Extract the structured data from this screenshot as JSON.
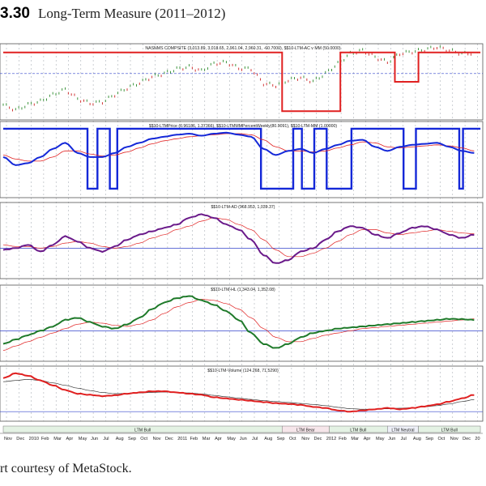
{
  "figure": {
    "number": "3.30",
    "title": "Long-Term Measure (2011–2012)",
    "caption": "rt courtesy of MetaStock."
  },
  "chart_data": {
    "type": "line",
    "colors": {
      "price_up": "#2a8a2a",
      "price_down": "#cc2222",
      "red": "#e02020",
      "blue": "#1428d8",
      "purple": "#6a1a8a",
      "green": "#1f7a2a",
      "thin": "#333333",
      "ref": "#3344cc",
      "grid": "#9aa0a8"
    },
    "x_axis": {
      "months": [
        "Nov",
        "Dec",
        "2010",
        "Feb",
        "Mar",
        "Apr",
        "May",
        "Jun",
        "Jul",
        "Aug",
        "Sep",
        "Oct",
        "Nov",
        "Dec",
        "2011",
        "Feb",
        "Mar",
        "Apr",
        "May",
        "Jun",
        "Jul",
        "Aug",
        "Sep",
        "Oct",
        "Nov",
        "Dec",
        "2012",
        "Feb",
        "Mar",
        "Apr",
        "May",
        "Jun",
        "Jul",
        "Aug",
        "Sep",
        "Oct",
        "Nov",
        "Dec",
        "20"
      ],
      "bands": [
        {
          "label": "LTM Bull",
          "from": 0,
          "to": 22.5,
          "style": "bull"
        },
        {
          "label": "LTM Bear",
          "from": 22.5,
          "to": 26.3,
          "style": "bear"
        },
        {
          "label": "LTM Bull",
          "from": 26.3,
          "to": 31.0,
          "style": "bull"
        },
        {
          "label": "LTM Neutral",
          "from": 31.0,
          "to": 33.5,
          "style": "neutral"
        },
        {
          "label": "LTM Bull",
          "from": 33.5,
          "to": 38.5,
          "style": "bull"
        }
      ]
    },
    "panels": [
      {
        "title": "NASNMS COMPSITE (3,013.89, 3,018.65, 2,961.04, 2,960.31, -60.7000), $$10-LTM-AC v MM (50.0000)",
        "price": [
          2230,
          2150,
          2230,
          2280,
          2380,
          2460,
          2320,
          2250,
          2270,
          2380,
          2480,
          2560,
          2650,
          2700,
          2770,
          2800,
          2740,
          2850,
          2870,
          2780,
          2770,
          2550,
          2520,
          2600,
          2640,
          2580,
          2700,
          2850,
          3000,
          3050,
          2950,
          2870,
          3000,
          3030,
          3060,
          3100,
          3050,
          3000,
          3010
        ],
        "price_range": [
          2000,
          3150
        ],
        "ref_line": 2700,
        "signal": {
          "name": "$$10-LTM-AC v MM",
          "steps": [
            [
              0,
              100
            ],
            [
              22.5,
              100
            ],
            [
              22.5,
              0
            ],
            [
              27.2,
              0
            ],
            [
              27.2,
              100
            ],
            [
              31.6,
              100
            ],
            [
              31.6,
              50
            ],
            [
              33.5,
              50
            ],
            [
              33.5,
              100
            ],
            [
              38.5,
              100
            ]
          ],
          "range": [
            0,
            100
          ]
        }
      },
      {
        "title": "$$10-LTMPrice (0.96186, 1.37366), $$10-LTMMMPercentWeekly(80.9091), $$10-LTM-MM (1.00000)",
        "series": [
          {
            "name": "LTMPrice",
            "color": "thick-blue",
            "values": [
              1.1,
              1.02,
              1.04,
              1.1,
              1.18,
              1.24,
              1.14,
              1.1,
              1.1,
              1.14,
              1.2,
              1.24,
              1.28,
              1.3,
              1.32,
              1.33,
              1.31,
              1.33,
              1.34,
              1.32,
              1.3,
              1.18,
              1.12,
              1.16,
              1.18,
              1.14,
              1.18,
              1.22,
              1.26,
              1.27,
              1.2,
              1.16,
              1.2,
              1.22,
              1.23,
              1.24,
              1.2,
              1.16,
              1.14
            ]
          },
          {
            "name": "LTMPrice avg",
            "color": "thin-red",
            "values": [
              1.12,
              1.08,
              1.06,
              1.06,
              1.1,
              1.16,
              1.16,
              1.13,
              1.11,
              1.12,
              1.15,
              1.19,
              1.23,
              1.26,
              1.28,
              1.3,
              1.31,
              1.32,
              1.33,
              1.33,
              1.32,
              1.27,
              1.2,
              1.16,
              1.16,
              1.15,
              1.16,
              1.19,
              1.22,
              1.25,
              1.24,
              1.2,
              1.19,
              1.2,
              1.21,
              1.22,
              1.21,
              1.19,
              1.16
            ]
          }
        ],
        "range": [
          0.7,
          1.45
        ],
        "signal": {
          "name": "$$10-LTM-MM",
          "steps": [
            [
              0,
              100
            ],
            [
              6.8,
              100
            ],
            [
              6.8,
              0
            ],
            [
              7.6,
              0
            ],
            [
              7.6,
              100
            ],
            [
              8.6,
              100
            ],
            [
              8.6,
              0
            ],
            [
              9.2,
              0
            ],
            [
              9.2,
              100
            ],
            [
              20.8,
              100
            ],
            [
              20.8,
              0
            ],
            [
              23.4,
              0
            ],
            [
              23.4,
              100
            ],
            [
              24.1,
              100
            ],
            [
              24.1,
              0
            ],
            [
              25.1,
              0
            ],
            [
              25.1,
              100
            ],
            [
              26.1,
              100
            ],
            [
              26.1,
              0
            ],
            [
              28.1,
              0
            ],
            [
              28.1,
              100
            ],
            [
              32.3,
              100
            ],
            [
              32.3,
              0
            ],
            [
              33.3,
              0
            ],
            [
              33.3,
              100
            ],
            [
              36.8,
              100
            ],
            [
              36.8,
              0
            ],
            [
              37.1,
              0
            ],
            [
              37.1,
              100
            ],
            [
              38.5,
              100
            ]
          ],
          "range": [
            0,
            100
          ]
        }
      },
      {
        "title": "$$10-LTM-AD (968.953, 1,039.37)",
        "series": [
          {
            "name": "LTM-AD",
            "values": [
              870,
              880,
              900,
              860,
              900,
              950,
              920,
              880,
              860,
              890,
              930,
              960,
              980,
              1000,
              1020,
              1060,
              1080,
              1060,
              1020,
              990,
              930,
              840,
              790,
              810,
              860,
              880,
              930,
              980,
              1010,
              1000,
              960,
              940,
              970,
              1000,
              1010,
              990,
              960,
              940,
              960
            ]
          },
          {
            "name": "LTM-AD avg",
            "values": [
              900,
              890,
              890,
              880,
              890,
              910,
              920,
              910,
              890,
              880,
              890,
              910,
              940,
              960,
              990,
              1010,
              1040,
              1060,
              1050,
              1020,
              990,
              930,
              870,
              830,
              830,
              850,
              880,
              920,
              960,
              990,
              990,
              970,
              960,
              970,
              980,
              990,
              980,
              970,
              965
            ]
          }
        ],
        "range": [
          700,
          1150
        ],
        "ref_line": 880
      },
      {
        "title": "$$10-LTM-HL (1,343.04, 1,352.08)",
        "series": [
          {
            "name": "LTM-HL",
            "values": [
              1230,
              1250,
              1270,
              1290,
              1310,
              1340,
              1350,
              1330,
              1310,
              1300,
              1320,
              1350,
              1390,
              1420,
              1440,
              1450,
              1430,
              1410,
              1380,
              1340,
              1280,
              1230,
              1210,
              1230,
              1260,
              1280,
              1290,
              1300,
              1305,
              1310,
              1315,
              1320,
              1325,
              1330,
              1335,
              1340,
              1345,
              1343,
              1340
            ]
          },
          {
            "name": "LTM-HL avg",
            "values": [
              1200,
              1220,
              1240,
              1260,
              1280,
              1300,
              1320,
              1330,
              1325,
              1315,
              1310,
              1320,
              1340,
              1370,
              1400,
              1420,
              1435,
              1430,
              1415,
              1390,
              1350,
              1300,
              1260,
              1240,
              1240,
              1255,
              1270,
              1280,
              1290,
              1300,
              1305,
              1310,
              1315,
              1320,
              1325,
              1330,
              1335,
              1340,
              1345
            ]
          }
        ],
        "range": [
          1150,
          1500
        ],
        "ref_line": 1290
      },
      {
        "title": "$$10-LTM-Volume (124.268, 71.5290)",
        "series": [
          {
            "name": "LTM-Volume",
            "values": [
              180,
              200,
              190,
              170,
              150,
              130,
              115,
              110,
              105,
              108,
              115,
              120,
              125,
              125,
              120,
              115,
              110,
              100,
              95,
              90,
              85,
              80,
              75,
              72,
              68,
              60,
              55,
              45,
              40,
              45,
              50,
              55,
              50,
              55,
              62,
              70,
              82,
              95,
              110
            ]
          },
          {
            "name": "LTM-Volume avg",
            "values": [
              165,
              170,
              175,
              170,
              160,
              150,
              138,
              128,
              120,
              115,
              116,
              118,
              120,
              122,
              121,
              118,
              114,
              108,
              102,
              96,
              91,
              86,
              82,
              78,
              74,
              70,
              65,
              58,
              52,
              50,
              50,
              52,
              54,
              56,
              60,
              65,
              72,
              82,
              90
            ]
          }
        ],
        "range": [
          0,
          230
        ],
        "ref_line": 40
      }
    ]
  }
}
